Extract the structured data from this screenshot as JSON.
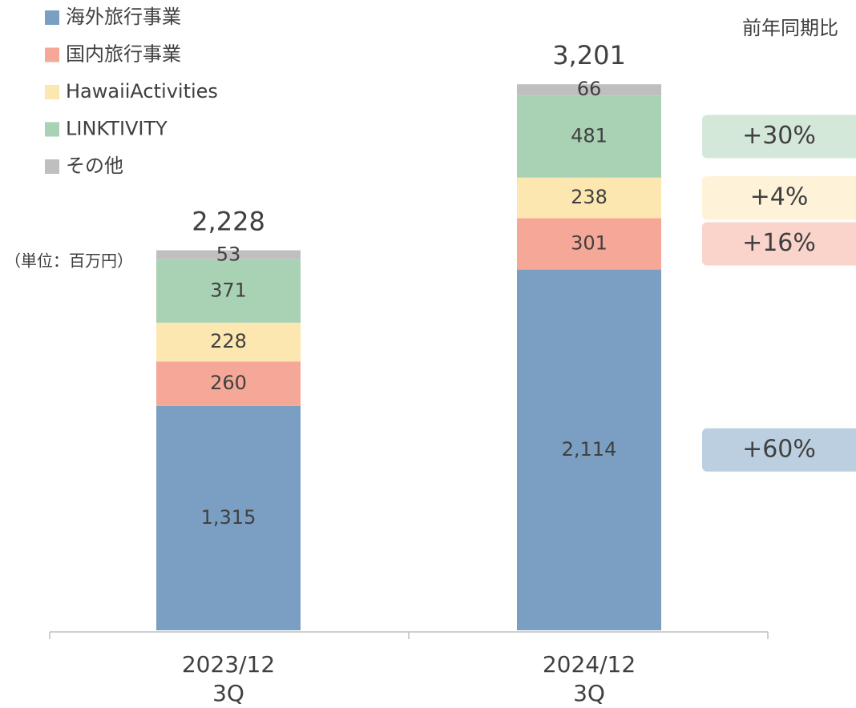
{
  "chart_data": {
    "type": "stacked_bar",
    "unit_note": "（単位：百万円）",
    "yoy_title": "前年同期比",
    "categories": [
      "2023/12\n3Q",
      "2024/12\n3Q"
    ],
    "series": [
      {
        "name": "海外旅行事業",
        "color": "#7a9fc2",
        "values": [
          1315,
          2114
        ],
        "value_labels": [
          "1,315",
          "2,114"
        ],
        "yoy": "+60%"
      },
      {
        "name": "国内旅行事業",
        "color": "#f5a897",
        "values": [
          260,
          301
        ],
        "yoy": "+16%"
      },
      {
        "name": "HawaiiActivities",
        "color": "#fde7b1",
        "values": [
          228,
          238
        ],
        "yoy": "+4%"
      },
      {
        "name": "LINKTIVITY",
        "color": "#a9d1b4",
        "values": [
          371,
          481
        ],
        "yoy": "+30%"
      },
      {
        "name": "その他",
        "color": "#bfbfbf",
        "values": [
          53,
          66
        ]
      }
    ],
    "totals": [
      2228,
      3201
    ],
    "total_labels": [
      "2,228",
      "3,201"
    ]
  }
}
